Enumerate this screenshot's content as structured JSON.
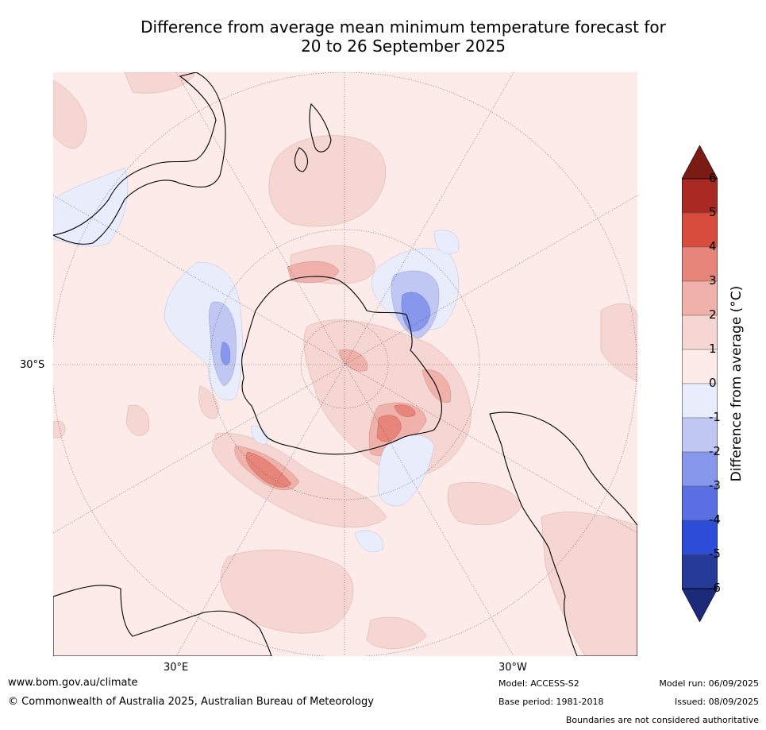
{
  "title_line1": "Difference from average mean minimum temperature forecast for",
  "title_line2": "20 to 26 September 2025",
  "map": {
    "projection": "south-polar-stereographic",
    "lat_label": "30°S",
    "lon_labels": [
      "30°E",
      "30°W"
    ]
  },
  "colorbar": {
    "label": "Difference from average (°C)",
    "ticks": [
      "6",
      "5",
      "4",
      "3",
      "2",
      "1",
      "0",
      "-1",
      "-2",
      "-3",
      "-4",
      "-5",
      "-6"
    ],
    "colors": [
      "#7a1c14",
      "#a82a22",
      "#d84c3e",
      "#e8857a",
      "#efb1a9",
      "#f6d6d2",
      "#fcebe8",
      "#e9ecfb",
      "#bfc7f2",
      "#8797eb",
      "#5a70e2",
      "#2d4dd9",
      "#263a9a",
      "#1c2a7a"
    ]
  },
  "footer": {
    "website": "www.bom.gov.au/climate",
    "copyright": "© Commonwealth of Australia 2025, Australian Bureau of Meteorology",
    "model": "Model: ACCESS-S2",
    "base_period": "Base period: 1981-2018",
    "model_run": "Model run: 06/09/2025",
    "issued": "Issued: 08/09/2025",
    "disclaimer": "Boundaries are not considered authoritative"
  }
}
